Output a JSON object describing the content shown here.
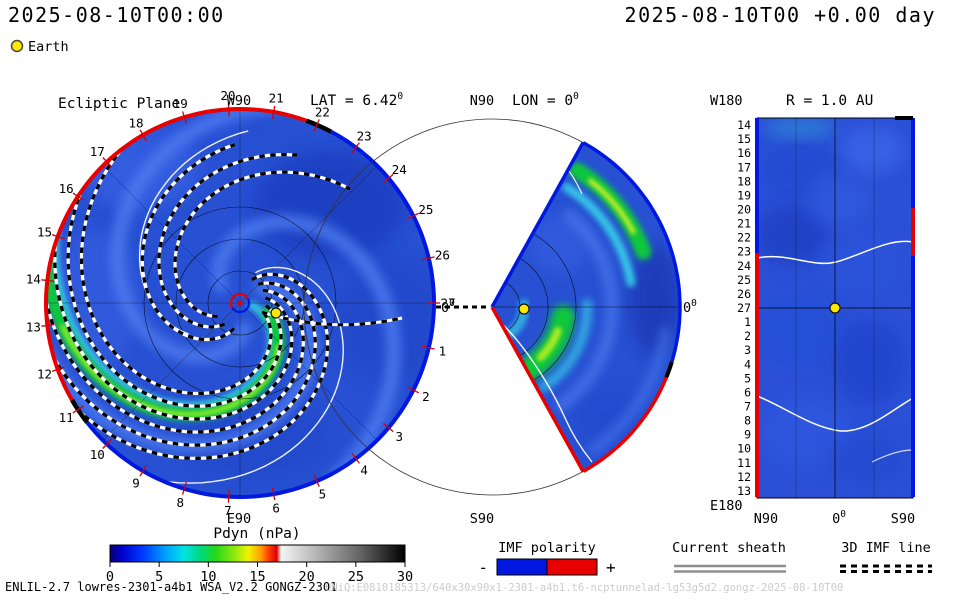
{
  "header": {
    "timestamp_left": "2025-08-10T00:00",
    "timestamp_right": "2025-08-10T00 +0.00 day",
    "earth_legend": "Earth"
  },
  "panels": {
    "deg_sup": "0",
    "ecliptic": {
      "title": "Ecliptic Plane",
      "top_label": "W90",
      "lat_label": "LAT = 6.42",
      "bottom_label": "E90",
      "zero_label": "0",
      "day_ticks": [
        1,
        2,
        3,
        4,
        5,
        6,
        7,
        8,
        9,
        10,
        11,
        12,
        13,
        14,
        15,
        16,
        17,
        18,
        19,
        20,
        21,
        22,
        23,
        24,
        25,
        26,
        27
      ]
    },
    "meridional": {
      "top_label": "N90",
      "lon_label": "LON = 0",
      "bottom_label": "S90",
      "zero_label": "0"
    },
    "radial": {
      "corner_top_label": "W180",
      "title": "R = 1.0 AU",
      "corner_bottom_label": "E180",
      "axis_labels": {
        "left": "N90",
        "center": "0",
        "right": "S90"
      },
      "day_ticks": [
        14,
        15,
        16,
        17,
        18,
        19,
        20,
        21,
        22,
        23,
        24,
        25,
        26,
        27,
        1,
        2,
        3,
        4,
        5,
        6,
        7,
        8,
        9,
        10,
        11,
        12,
        13
      ]
    }
  },
  "colorbar": {
    "title": "Pdyn (nPa)",
    "min": 0,
    "max": 30,
    "ticks": [
      0,
      5,
      10,
      15,
      20,
      25,
      30
    ]
  },
  "legend": {
    "imf_polarity": {
      "label": "IMF polarity",
      "negative": "-",
      "positive": "+",
      "negative_color": "#0018e0",
      "positive_color": "#e80000"
    },
    "current_sheath": {
      "label": "Current sheath",
      "color": "#8f8f8f"
    },
    "imf_line_3d": {
      "label": "3D IMF line"
    }
  },
  "footer": {
    "model_info": "ENLIL-2.7 lowres-2301-a4b1 WSA_V2.2 GONGZ-2301",
    "watermark": "UNiQ:E0810185313/640x30x90x1-2301-a4b1.t6-ncptunnelad-lg53g5d2.gongz-2025-08-10T00"
  },
  "colors": {
    "earth_marker": "#ffe800",
    "solar_wind_base_blue": "#2750d2",
    "day_tick_red": "#d40000",
    "imf_negative_blue": "#0018e0",
    "imf_positive_red": "#e80000",
    "current_sheet_white": "#ffffff"
  },
  "chart_data": {
    "type": "heatmap",
    "model_run": "WSA-ENLIL heliospheric solar wind simulation",
    "quantity": "Pdyn (nPa)",
    "time": {
      "map_time": "2025-08-10T00:00",
      "forecast_offset_days": 0.0
    },
    "colorbar": {
      "label": "Pdyn (nPa)",
      "range": [
        0,
        30
      ],
      "ticks": [
        0,
        5,
        10,
        15,
        20,
        25,
        30
      ],
      "style": "rainbow (blue-cyan-green-yellow-red) for 0-17, white-to-black grayscale for 17-30"
    },
    "panels": [
      {
        "id": "ecliptic",
        "title": "Ecliptic Plane",
        "projection": "Sun-centered polar view of ecliptic plane out to ~1.7 AU",
        "latitude_label": "LAT = 6.42°",
        "boundary_labels": [
          "W90",
          "E90",
          "0°"
        ],
        "day_of_rotation_ticks": [
          1,
          2,
          3,
          4,
          5,
          6,
          7,
          8,
          9,
          10,
          11,
          12,
          13,
          14,
          15,
          16,
          17,
          18,
          19,
          20,
          21,
          22,
          23,
          24,
          25,
          26,
          27
        ],
        "features": [
          "Parker-spiral density arms (cyan/green high Pdyn)",
          "black/white dashed 3D IMF field lines",
          "thin white current sheet spiral",
          "outer rim colored by IMF polarity (red +, blue -)",
          "Earth marker at 1 AU",
          "Sun at center"
        ]
      },
      {
        "id": "meridional",
        "title": "LON = 0°",
        "projection": "polar sector N90 to S90 at constant longitude",
        "boundary_labels": [
          "N90",
          "S90",
          "0°"
        ],
        "features": [
          "bright green/yellow high-pressure band at high northern latitude",
          "green blob near apex south of equator",
          "edges colored by IMF polarity",
          "Earth marker on 0° line"
        ]
      },
      {
        "id": "constant_radius_map",
        "title": "R = 1.0 AU",
        "projection": "latitude (N90-0-S90) vs. day-of-rotation map at 1 AU",
        "x_axis_labels": [
          "N90",
          "0°",
          "S90"
        ],
        "corner_labels": [
          "W180",
          "E180"
        ],
        "y_axis_days": [
          14,
          15,
          16,
          17,
          18,
          19,
          20,
          21,
          22,
          23,
          24,
          25,
          26,
          27,
          1,
          2,
          3,
          4,
          5,
          6,
          7,
          8,
          9,
          10,
          11,
          12,
          13
        ],
        "features": [
          "white current-sheet curves",
          "left/right borders colored by IMF polarity",
          "Earth marker at day 27, latitude 0°"
        ]
      }
    ],
    "markers": [
      {
        "name": "Earth",
        "symbol": "yellow filled circle with dark outline"
      }
    ],
    "boundary_encoding": "blue = negative IMF polarity, red = positive IMF polarity, black = current sheet crossing"
  }
}
